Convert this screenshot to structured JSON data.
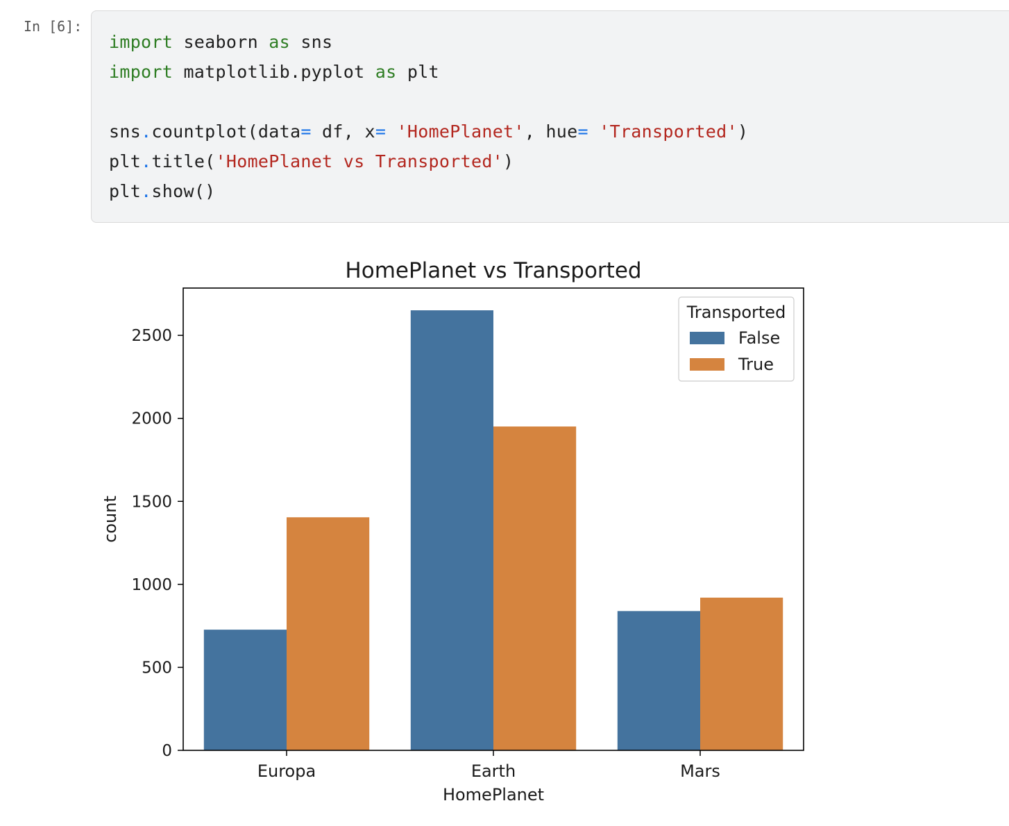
{
  "cell": {
    "prompt": "In [6]:",
    "lines": [
      [
        {
          "t": "import",
          "c": "kw"
        },
        {
          "t": " seaborn ",
          "c": ""
        },
        {
          "t": "as",
          "c": "kw"
        },
        {
          "t": " sns",
          "c": ""
        }
      ],
      [
        {
          "t": "import",
          "c": "kw"
        },
        {
          "t": " matplotlib.pyplot ",
          "c": ""
        },
        {
          "t": "as",
          "c": "kw"
        },
        {
          "t": " plt",
          "c": ""
        }
      ],
      [],
      [
        {
          "t": "sns",
          "c": ""
        },
        {
          "t": ".",
          "c": "op"
        },
        {
          "t": "countplot(data",
          "c": ""
        },
        {
          "t": "=",
          "c": "op"
        },
        {
          "t": " df, x",
          "c": ""
        },
        {
          "t": "=",
          "c": "op"
        },
        {
          "t": " ",
          "c": ""
        },
        {
          "t": "'HomePlanet'",
          "c": "str"
        },
        {
          "t": ", hue",
          "c": ""
        },
        {
          "t": "=",
          "c": "op"
        },
        {
          "t": " ",
          "c": ""
        },
        {
          "t": "'Transported'",
          "c": "str"
        },
        {
          "t": ")",
          "c": ""
        }
      ],
      [
        {
          "t": "plt",
          "c": ""
        },
        {
          "t": ".",
          "c": "op"
        },
        {
          "t": "title(",
          "c": ""
        },
        {
          "t": "'HomePlanet vs Transported'",
          "c": "str"
        },
        {
          "t": ")",
          "c": ""
        }
      ],
      [
        {
          "t": "plt",
          "c": ""
        },
        {
          "t": ".",
          "c": "op"
        },
        {
          "t": "show()",
          "c": ""
        }
      ]
    ]
  },
  "colors": {
    "false_bar": "#44739e",
    "true_bar": "#d5843f"
  },
  "chart_data": {
    "type": "bar",
    "title": "HomePlanet vs Transported",
    "xlabel": "HomePlanet",
    "ylabel": "count",
    "categories": [
      "Europa",
      "Earth",
      "Mars"
    ],
    "series": [
      {
        "name": "False",
        "values": [
          727,
          2651,
          839
        ]
      },
      {
        "name": "True",
        "values": [
          1404,
          1951,
          920
        ]
      }
    ],
    "ylim": [
      0,
      2785
    ],
    "yticks": [
      0,
      500,
      1000,
      1500,
      2000,
      2500
    ],
    "legend": {
      "title": "Transported",
      "placement": "top-right"
    },
    "grid": false
  }
}
